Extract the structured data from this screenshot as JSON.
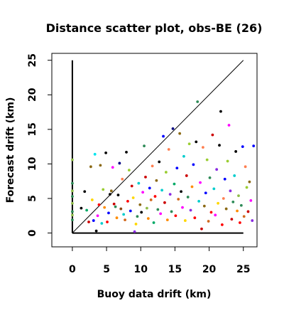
{
  "chart_data": {
    "type": "scatter",
    "title": "Distance scatter plot, obs-BE (26)",
    "xlabel": "Buoy data drift (km)",
    "ylabel": "Forecast drift (km)",
    "xlim": [
      -3,
      27
    ],
    "ylim": [
      -2,
      26
    ],
    "x_ticks": [
      0,
      5,
      10,
      15,
      20,
      25
    ],
    "y_ticks": [
      0,
      5,
      10,
      15,
      20,
      25
    ],
    "grid": false,
    "legend": "none",
    "reference_lines": [
      {
        "kind": "diagonal",
        "from": [
          0,
          0
        ],
        "to": [
          25,
          25
        ],
        "color": "#000000"
      },
      {
        "kind": "vertical",
        "from": [
          0,
          0
        ],
        "to": [
          0,
          25
        ],
        "color": "#000000"
      },
      {
        "kind": "horizontal",
        "from": [
          0,
          0
        ],
        "to": [
          25,
          0
        ],
        "color": "#000000"
      }
    ],
    "points": [
      {
        "x": 0,
        "y": 10.6,
        "color": "#8fbc4a"
      },
      {
        "x": 0,
        "y": 7.2,
        "color": "#2e8b57"
      },
      {
        "x": 0,
        "y": 6.1,
        "color": "#8fbc4a"
      },
      {
        "x": 0,
        "y": 5.3,
        "color": "#2e8b57"
      },
      {
        "x": 0,
        "y": 4.3,
        "color": "#8fbc4a"
      },
      {
        "x": 0,
        "y": 3.1,
        "color": "#2e8b57"
      },
      {
        "x": 0,
        "y": 2.6,
        "color": "#8fbc4a"
      },
      {
        "x": 0,
        "y": 1.9,
        "color": "#2e8b57"
      },
      {
        "x": 1.3,
        "y": 3.6,
        "color": "#000000"
      },
      {
        "x": 1.8,
        "y": 6.0,
        "color": "#000000"
      },
      {
        "x": 2.1,
        "y": 3.3,
        "color": "#00aa66"
      },
      {
        "x": 2.4,
        "y": 1.6,
        "color": "#cc0000"
      },
      {
        "x": 2.7,
        "y": 9.6,
        "color": "#8b6914"
      },
      {
        "x": 2.9,
        "y": 4.8,
        "color": "#ffd700"
      },
      {
        "x": 3.1,
        "y": 1.8,
        "color": "#0000ff"
      },
      {
        "x": 3.3,
        "y": 11.4,
        "color": "#00e5ee"
      },
      {
        "x": 3.5,
        "y": 0.3,
        "color": "#000000"
      },
      {
        "x": 3.7,
        "y": 2.5,
        "color": "#ff00ff"
      },
      {
        "x": 3.9,
        "y": 4.1,
        "color": "#ff0000"
      },
      {
        "x": 4.1,
        "y": 9.8,
        "color": "#8b6914"
      },
      {
        "x": 4.3,
        "y": 1.4,
        "color": "#00cdcd"
      },
      {
        "x": 4.5,
        "y": 6.3,
        "color": "#9acd32"
      },
      {
        "x": 4.7,
        "y": 3.7,
        "color": "#ff8c00"
      },
      {
        "x": 4.9,
        "y": 11.6,
        "color": "#000000"
      },
      {
        "x": 5.1,
        "y": 1.6,
        "color": "#ff0000"
      },
      {
        "x": 5.3,
        "y": 2.9,
        "color": "#0000ff"
      },
      {
        "x": 5.5,
        "y": 5.6,
        "color": "#000000"
      },
      {
        "x": 5.7,
        "y": 6.1,
        "color": "#8b6914"
      },
      {
        "x": 5.9,
        "y": 9.5,
        "color": "#ff00ff"
      },
      {
        "x": 6.1,
        "y": 4.2,
        "color": "#cc0000"
      },
      {
        "x": 6.3,
        "y": 3.8,
        "color": "#2e8b57"
      },
      {
        "x": 6.5,
        "y": 2.2,
        "color": "#ff8c00"
      },
      {
        "x": 6.7,
        "y": 5.5,
        "color": "#000000"
      },
      {
        "x": 6.9,
        "y": 10.1,
        "color": "#000080"
      },
      {
        "x": 7.1,
        "y": 3.5,
        "color": "#8b4513"
      },
      {
        "x": 7.3,
        "y": 7.8,
        "color": "#ff7f50"
      },
      {
        "x": 7.5,
        "y": 2.7,
        "color": "#00cdcd"
      },
      {
        "x": 7.7,
        "y": 1.9,
        "color": "#d2691e"
      },
      {
        "x": 7.9,
        "y": 11.7,
        "color": "#000000"
      },
      {
        "x": 8.1,
        "y": 4.6,
        "color": "#ff0000"
      },
      {
        "x": 8.3,
        "y": 9.1,
        "color": "#9acd32"
      },
      {
        "x": 8.5,
        "y": 3.2,
        "color": "#0000ff"
      },
      {
        "x": 8.7,
        "y": 6.8,
        "color": "#cc0000"
      },
      {
        "x": 8.9,
        "y": 5.1,
        "color": "#ffd700"
      },
      {
        "x": 9.1,
        "y": 0.2,
        "color": "#8a2be2"
      },
      {
        "x": 9.3,
        "y": 1.3,
        "color": "#ffd700"
      },
      {
        "x": 9.5,
        "y": 2.4,
        "color": "#2e8b57"
      },
      {
        "x": 9.7,
        "y": 7.2,
        "color": "#00cdcd"
      },
      {
        "x": 9.9,
        "y": 4.1,
        "color": "#8b6914"
      },
      {
        "x": 10.1,
        "y": 3.0,
        "color": "#000000"
      },
      {
        "x": 10.3,
        "y": 5.9,
        "color": "#ff00ff"
      },
      {
        "x": 10.5,
        "y": 12.6,
        "color": "#2e8b57"
      },
      {
        "x": 10.7,
        "y": 8.1,
        "color": "#cc0000"
      },
      {
        "x": 10.9,
        "y": 3.6,
        "color": "#8fbc4a"
      },
      {
        "x": 11.1,
        "y": 2.1,
        "color": "#ff8c00"
      },
      {
        "x": 11.3,
        "y": 6.5,
        "color": "#0000ff"
      },
      {
        "x": 11.5,
        "y": 4.8,
        "color": "#d2691e"
      },
      {
        "x": 11.7,
        "y": 9.7,
        "color": "#ff7f50"
      },
      {
        "x": 11.9,
        "y": 1.5,
        "color": "#00aa66"
      },
      {
        "x": 12.1,
        "y": 5.3,
        "color": "#ff0000"
      },
      {
        "x": 12.3,
        "y": 7.6,
        "color": "#8b6914"
      },
      {
        "x": 12.5,
        "y": 3.4,
        "color": "#2e8b57"
      },
      {
        "x": 12.7,
        "y": 10.3,
        "color": "#000000"
      },
      {
        "x": 12.9,
        "y": 2.8,
        "color": "#ff00ff"
      },
      {
        "x": 13.1,
        "y": 6.2,
        "color": "#00cdcd"
      },
      {
        "x": 13.3,
        "y": 14.0,
        "color": "#0000ff"
      },
      {
        "x": 13.5,
        "y": 4.4,
        "color": "#cc0000"
      },
      {
        "x": 13.7,
        "y": 8.8,
        "color": "#9acd32"
      },
      {
        "x": 13.9,
        "y": 1.9,
        "color": "#ff8c00"
      },
      {
        "x": 14.1,
        "y": 12.1,
        "color": "#ff7f50"
      },
      {
        "x": 14.3,
        "y": 5.6,
        "color": "#8a2be2"
      },
      {
        "x": 14.5,
        "y": 3.1,
        "color": "#2e8b57"
      },
      {
        "x": 14.7,
        "y": 15.1,
        "color": "#000080"
      },
      {
        "x": 14.9,
        "y": 7.1,
        "color": "#00aa66"
      },
      {
        "x": 15.1,
        "y": 2.5,
        "color": "#ff0000"
      },
      {
        "x": 15.3,
        "y": 9.4,
        "color": "#0000ff"
      },
      {
        "x": 15.5,
        "y": 4.9,
        "color": "#d2691e"
      },
      {
        "x": 15.7,
        "y": 14.4,
        "color": "#8b6914"
      },
      {
        "x": 15.9,
        "y": 6.0,
        "color": "#000000"
      },
      {
        "x": 16.1,
        "y": 3.7,
        "color": "#ff00ff"
      },
      {
        "x": 16.3,
        "y": 11.1,
        "color": "#00cdcd"
      },
      {
        "x": 16.5,
        "y": 1.8,
        "color": "#ffd700"
      },
      {
        "x": 16.7,
        "y": 8.3,
        "color": "#cc0000"
      },
      {
        "x": 16.9,
        "y": 5.2,
        "color": "#2e8b57"
      },
      {
        "x": 17.1,
        "y": 12.9,
        "color": "#9acd32"
      },
      {
        "x": 17.3,
        "y": 3.3,
        "color": "#8a2be2"
      },
      {
        "x": 17.5,
        "y": 6.7,
        "color": "#ff8c00"
      },
      {
        "x": 17.7,
        "y": 9.9,
        "color": "#0000ff"
      },
      {
        "x": 17.9,
        "y": 2.2,
        "color": "#ff0000"
      },
      {
        "x": 18.1,
        "y": 13.2,
        "color": "#000000"
      },
      {
        "x": 18.3,
        "y": 19.0,
        "color": "#2e8b57"
      },
      {
        "x": 18.5,
        "y": 4.6,
        "color": "#00cdcd"
      },
      {
        "x": 18.7,
        "y": 7.3,
        "color": "#ff00ff"
      },
      {
        "x": 18.9,
        "y": 0.6,
        "color": "#cc0000"
      },
      {
        "x": 19.1,
        "y": 12.4,
        "color": "#ff7f50"
      },
      {
        "x": 19.3,
        "y": 3.9,
        "color": "#8b6914"
      },
      {
        "x": 19.5,
        "y": 5.8,
        "color": "#0000ff"
      },
      {
        "x": 19.7,
        "y": 10.6,
        "color": "#9acd32"
      },
      {
        "x": 19.9,
        "y": 1.7,
        "color": "#d2691e"
      },
      {
        "x": 20.1,
        "y": 8.0,
        "color": "#2e8b57"
      },
      {
        "x": 20.3,
        "y": 3.0,
        "color": "#ff0000"
      },
      {
        "x": 20.5,
        "y": 14.2,
        "color": "#cc0000"
      },
      {
        "x": 20.7,
        "y": 6.4,
        "color": "#00cdcd"
      },
      {
        "x": 20.9,
        "y": 2.6,
        "color": "#ff00ff"
      },
      {
        "x": 21.1,
        "y": 9.2,
        "color": "#8a2be2"
      },
      {
        "x": 21.3,
        "y": 4.3,
        "color": "#ffd700"
      },
      {
        "x": 21.5,
        "y": 12.7,
        "color": "#000000"
      },
      {
        "x": 21.7,
        "y": 17.6,
        "color": "#000000"
      },
      {
        "x": 21.9,
        "y": 1.2,
        "color": "#ff0000"
      },
      {
        "x": 22.1,
        "y": 5.0,
        "color": "#ff7f50"
      },
      {
        "x": 22.3,
        "y": 7.8,
        "color": "#0000ff"
      },
      {
        "x": 22.5,
        "y": 3.5,
        "color": "#8b6914"
      },
      {
        "x": 22.7,
        "y": 10.4,
        "color": "#9acd32"
      },
      {
        "x": 22.9,
        "y": 15.6,
        "color": "#ff00ff"
      },
      {
        "x": 23.1,
        "y": 6.1,
        "color": "#8a2be2"
      },
      {
        "x": 23.3,
        "y": 2.0,
        "color": "#cc0000"
      },
      {
        "x": 23.5,
        "y": 4.5,
        "color": "#2e8b57"
      },
      {
        "x": 23.7,
        "y": 8.3,
        "color": "#00cdcd"
      },
      {
        "x": 23.9,
        "y": 11.8,
        "color": "#000000"
      },
      {
        "x": 24.1,
        "y": 3.2,
        "color": "#ff8c00"
      },
      {
        "x": 24.3,
        "y": 5.4,
        "color": "#8fbc4a"
      },
      {
        "x": 24.5,
        "y": 1.5,
        "color": "#ff0000"
      },
      {
        "x": 24.7,
        "y": 4.0,
        "color": "#2e8b57"
      },
      {
        "x": 24.9,
        "y": 12.5,
        "color": "#0000ff"
      },
      {
        "x": 25.1,
        "y": 2.4,
        "color": "#d2691e"
      },
      {
        "x": 25.3,
        "y": 9.6,
        "color": "#ff7f50"
      },
      {
        "x": 25.5,
        "y": 6.6,
        "color": "#9acd32"
      },
      {
        "x": 25.7,
        "y": 3.1,
        "color": "#cc0000"
      },
      {
        "x": 25.9,
        "y": 7.4,
        "color": "#8b6914"
      },
      {
        "x": 26.1,
        "y": 4.7,
        "color": "#ff00ff"
      },
      {
        "x": 26.3,
        "y": 1.8,
        "color": "#8a2be2"
      },
      {
        "x": 26.5,
        "y": 12.6,
        "color": "#0000ff"
      }
    ]
  }
}
